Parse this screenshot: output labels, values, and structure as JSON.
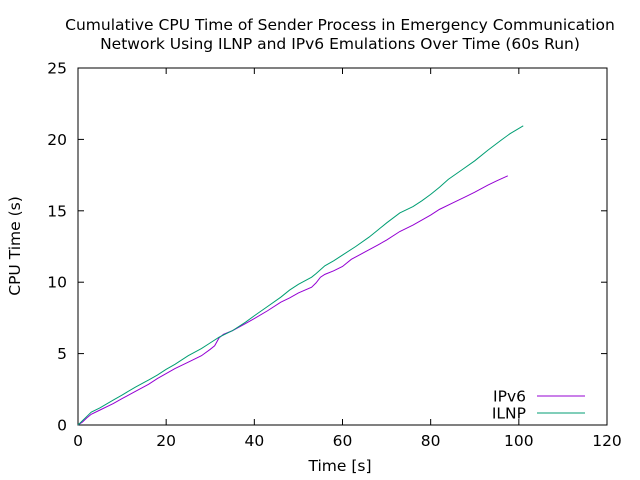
{
  "chart_data": {
    "type": "line",
    "title_line1": "Cumulative CPU Time of Sender Process in Emergency Communication",
    "title_line2": "Network Using ILNP and IPv6 Emulations Over Time (60s Run)",
    "xlabel": "Time [s]",
    "ylabel": "CPU Time (s)",
    "xlim": [
      0,
      120
    ],
    "ylim": [
      0,
      25
    ],
    "xticks": [
      0,
      20,
      40,
      60,
      80,
      100,
      120
    ],
    "yticks": [
      0,
      5,
      10,
      15,
      20,
      25
    ],
    "grid": false,
    "legend_position": "bottom-right",
    "series": [
      {
        "name": "IPv6",
        "color": "#9400d3",
        "points": [
          [
            0,
            0
          ],
          [
            1,
            0.2
          ],
          [
            2,
            0.5
          ],
          [
            3,
            0.75
          ],
          [
            5,
            1.05
          ],
          [
            8,
            1.5
          ],
          [
            10,
            1.85
          ],
          [
            13,
            2.35
          ],
          [
            16,
            2.85
          ],
          [
            18,
            3.25
          ],
          [
            20,
            3.6
          ],
          [
            22,
            3.95
          ],
          [
            25,
            4.4
          ],
          [
            28,
            4.85
          ],
          [
            30,
            5.3
          ],
          [
            31,
            5.55
          ],
          [
            32,
            6.1
          ],
          [
            33,
            6.35
          ],
          [
            35,
            6.6
          ],
          [
            38,
            7.1
          ],
          [
            40,
            7.45
          ],
          [
            43,
            8.0
          ],
          [
            46,
            8.6
          ],
          [
            48,
            8.9
          ],
          [
            50,
            9.25
          ],
          [
            53,
            9.65
          ],
          [
            54,
            9.95
          ],
          [
            55,
            10.35
          ],
          [
            56,
            10.55
          ],
          [
            58,
            10.8
          ],
          [
            60,
            11.1
          ],
          [
            62,
            11.6
          ],
          [
            65,
            12.1
          ],
          [
            68,
            12.6
          ],
          [
            70,
            12.95
          ],
          [
            73,
            13.55
          ],
          [
            76,
            14.0
          ],
          [
            80,
            14.7
          ],
          [
            82,
            15.1
          ],
          [
            85,
            15.55
          ],
          [
            88,
            16.0
          ],
          [
            90,
            16.3
          ],
          [
            93,
            16.8
          ],
          [
            95,
            17.1
          ],
          [
            97.5,
            17.45
          ]
        ]
      },
      {
        "name": "ILNP",
        "color": "#009e73",
        "points": [
          [
            0,
            0
          ],
          [
            1,
            0.3
          ],
          [
            2,
            0.6
          ],
          [
            3,
            0.9
          ],
          [
            5,
            1.2
          ],
          [
            8,
            1.75
          ],
          [
            10,
            2.1
          ],
          [
            13,
            2.65
          ],
          [
            16,
            3.15
          ],
          [
            18,
            3.5
          ],
          [
            20,
            3.9
          ],
          [
            22,
            4.25
          ],
          [
            25,
            4.85
          ],
          [
            28,
            5.35
          ],
          [
            30,
            5.75
          ],
          [
            32,
            6.15
          ],
          [
            35,
            6.6
          ],
          [
            38,
            7.2
          ],
          [
            40,
            7.65
          ],
          [
            43,
            8.3
          ],
          [
            46,
            8.95
          ],
          [
            48,
            9.45
          ],
          [
            50,
            9.85
          ],
          [
            53,
            10.35
          ],
          [
            54,
            10.6
          ],
          [
            56,
            11.15
          ],
          [
            58,
            11.5
          ],
          [
            60,
            11.9
          ],
          [
            63,
            12.5
          ],
          [
            66,
            13.15
          ],
          [
            68,
            13.65
          ],
          [
            70,
            14.15
          ],
          [
            73,
            14.85
          ],
          [
            76,
            15.3
          ],
          [
            78,
            15.7
          ],
          [
            80,
            16.15
          ],
          [
            82,
            16.65
          ],
          [
            84,
            17.2
          ],
          [
            87,
            17.85
          ],
          [
            90,
            18.5
          ],
          [
            93,
            19.25
          ],
          [
            96,
            19.95
          ],
          [
            98,
            20.4
          ],
          [
            101,
            20.95
          ]
        ]
      }
    ]
  }
}
